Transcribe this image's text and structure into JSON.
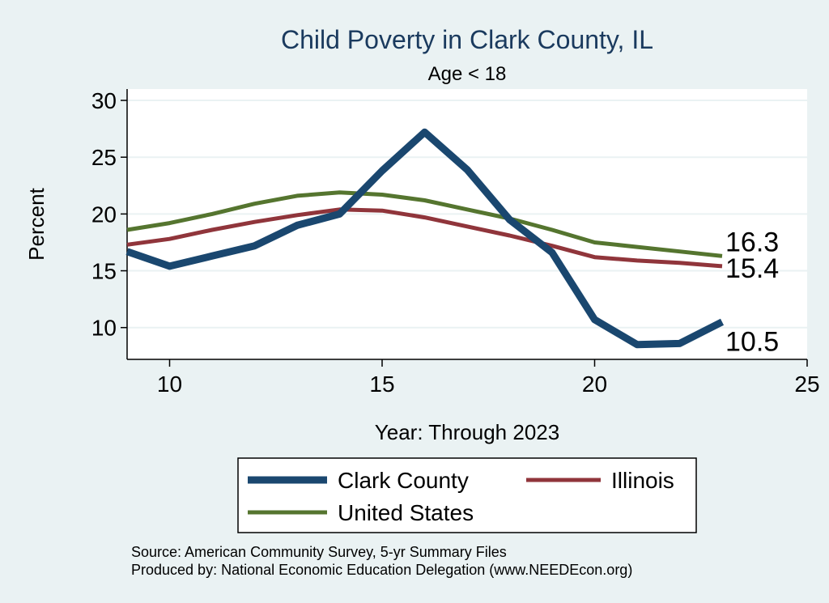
{
  "chart_data": {
    "type": "line",
    "title": "Child Poverty in Clark County, IL",
    "subtitle": "Age < 18",
    "xlabel": "Year: Through 2023",
    "ylabel": "Percent",
    "xlim": [
      9,
      25
    ],
    "ylim": [
      7.2,
      31
    ],
    "xticks": [
      10,
      15,
      20,
      25
    ],
    "yticks": [
      10,
      15,
      20,
      25,
      30
    ],
    "grid": true,
    "legend_position": "bottom",
    "x": [
      9,
      10,
      11,
      12,
      13,
      14,
      15,
      16,
      17,
      18,
      19,
      20,
      21,
      22,
      23
    ],
    "series": [
      {
        "name": "Clark County",
        "color": "#1a476f",
        "width": 9,
        "values": [
          16.7,
          15.4,
          16.3,
          17.2,
          19.0,
          20.0,
          23.8,
          27.2,
          23.9,
          19.5,
          16.6,
          10.7,
          8.5,
          8.6,
          10.5
        ],
        "end_label": "10.5"
      },
      {
        "name": "Illinois",
        "color": "#90353b",
        "width": 5,
        "values": [
          17.3,
          17.8,
          18.6,
          19.3,
          19.9,
          20.4,
          20.3,
          19.7,
          18.9,
          18.1,
          17.2,
          16.2,
          15.9,
          15.7,
          15.4
        ],
        "end_label": "15.4"
      },
      {
        "name": "United States",
        "color": "#55752f",
        "width": 5,
        "values": [
          18.6,
          19.2,
          20.0,
          20.9,
          21.6,
          21.9,
          21.7,
          21.2,
          20.4,
          19.6,
          18.6,
          17.5,
          17.1,
          16.7,
          16.3
        ],
        "end_label": "16.3"
      }
    ],
    "notes": [
      "Source: American Community Survey, 5-yr Summary Files",
      "Produced by: National Economic Education Delegation (www.NEEDEcon.org)"
    ]
  }
}
